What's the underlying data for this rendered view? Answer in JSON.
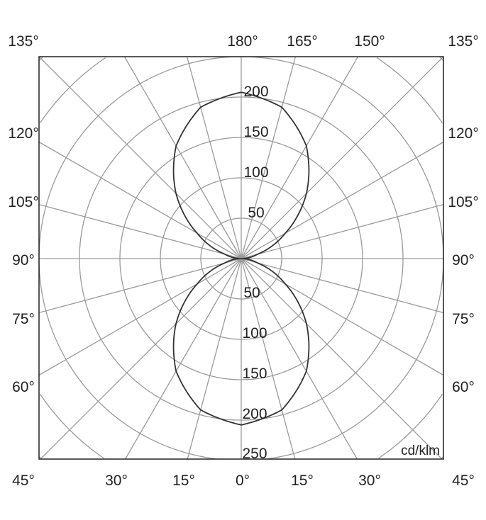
{
  "chart_data": {
    "type": "polar",
    "unit_label": "cd/klm",
    "radial_ticks": [
      50,
      100,
      150,
      200,
      250
    ],
    "radial_tick_labels_upper": [
      "50",
      "100",
      "150",
      "200"
    ],
    "radial_tick_labels_lower": [
      "50",
      "100",
      "150",
      "200",
      "250"
    ],
    "radial_max": 250,
    "angle_step_deg": 15,
    "angle_labels": {
      "top": [
        "135°",
        "180°",
        "165°",
        "150°",
        "135°"
      ],
      "left": [
        "120°",
        "105°",
        "90°",
        "75°",
        "60°"
      ],
      "right": [
        "120°",
        "105°",
        "90°",
        "75°",
        "60°"
      ],
      "bottom": [
        "45°",
        "30°",
        "15°",
        "0°",
        "15°",
        "30°",
        "45°"
      ]
    },
    "grid": true,
    "series": [
      {
        "angles_deg": [
          0,
          15,
          30,
          45,
          60,
          75,
          90,
          105,
          120,
          135,
          150,
          165,
          180
        ],
        "values": [
          206,
          194,
          161,
          114,
          63,
          21,
          0,
          21,
          63,
          114,
          161,
          194,
          206
        ]
      }
    ],
    "colors": {
      "grid": "#9a9a9a",
      "curve": "#333333",
      "frame": "#222222",
      "text": "#222222"
    }
  }
}
